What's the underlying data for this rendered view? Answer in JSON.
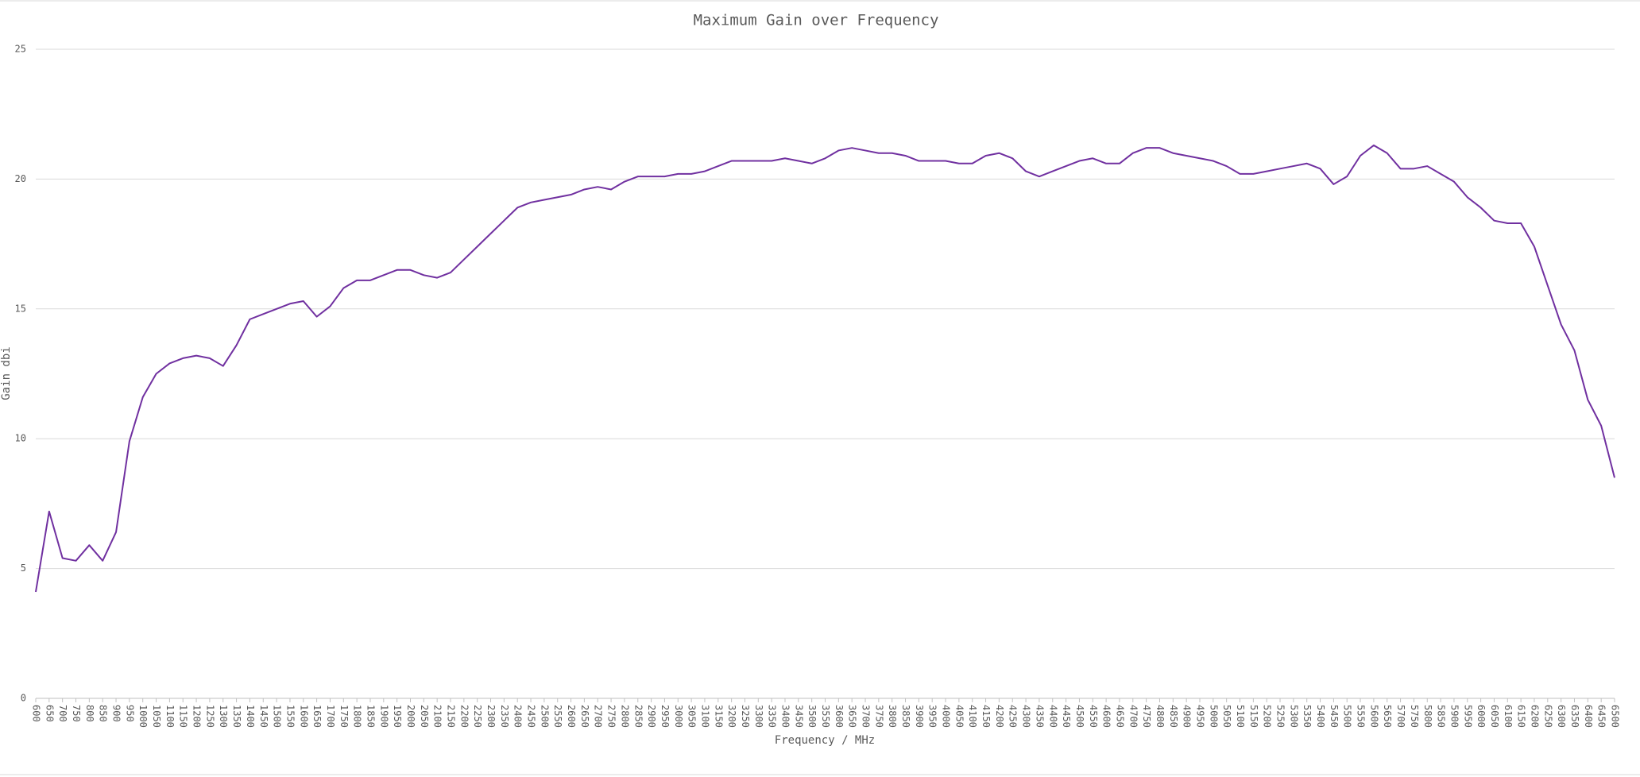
{
  "chart_data": {
    "type": "line",
    "title": "Maximum Gain over Frequency",
    "x_label": "Frequency / MHz",
    "y_label": "Gain dbi",
    "x": [
      600,
      650,
      700,
      750,
      800,
      850,
      900,
      950,
      1000,
      1050,
      1100,
      1150,
      1200,
      1250,
      1300,
      1350,
      1400,
      1450,
      1500,
      1550,
      1600,
      1650,
      1700,
      1750,
      1800,
      1850,
      1900,
      1950,
      2000,
      2050,
      2100,
      2150,
      2200,
      2250,
      2300,
      2350,
      2400,
      2450,
      2500,
      2550,
      2600,
      2650,
      2700,
      2750,
      2800,
      2850,
      2900,
      2950,
      3000,
      3050,
      3100,
      3150,
      3200,
      3250,
      3300,
      3350,
      3400,
      3450,
      3500,
      3550,
      3600,
      3650,
      3700,
      3750,
      3800,
      3850,
      3900,
      3950,
      4000,
      4050,
      4100,
      4150,
      4200,
      4250,
      4300,
      4350,
      4400,
      4450,
      4500,
      4550,
      4600,
      4650,
      4700,
      4750,
      4800,
      4850,
      4900,
      4950,
      5000,
      5050,
      5100,
      5150,
      5200,
      5250,
      5300,
      5350,
      5400,
      5450,
      5500,
      5550,
      5600,
      5650,
      5700,
      5750,
      5800,
      5850,
      5900,
      5950,
      6000,
      6050,
      6100,
      6150,
      6200,
      6250,
      6300,
      6350,
      6400,
      6450,
      6500
    ],
    "series": [
      {
        "name": "Gain",
        "color": "#7030a0",
        "values": [
          4.1,
          7.2,
          5.4,
          5.3,
          5.9,
          5.3,
          6.4,
          9.9,
          11.6,
          12.5,
          12.9,
          13.1,
          13.2,
          13.1,
          12.8,
          13.6,
          14.6,
          14.8,
          15.0,
          15.2,
          15.3,
          14.7,
          15.1,
          15.8,
          16.1,
          16.1,
          16.3,
          16.5,
          16.5,
          16.3,
          16.2,
          16.4,
          16.9,
          17.4,
          17.9,
          18.4,
          18.9,
          19.1,
          19.2,
          19.3,
          19.4,
          19.6,
          19.7,
          19.6,
          19.9,
          20.1,
          20.1,
          20.1,
          20.2,
          20.2,
          20.3,
          20.5,
          20.7,
          20.7,
          20.7,
          20.7,
          20.8,
          20.7,
          20.6,
          20.8,
          21.1,
          21.2,
          21.1,
          21.0,
          21.0,
          20.9,
          20.7,
          20.7,
          20.7,
          20.6,
          20.6,
          20.9,
          21.0,
          20.8,
          20.3,
          20.1,
          20.3,
          20.5,
          20.7,
          20.8,
          20.6,
          20.6,
          21.0,
          21.2,
          21.2,
          21.0,
          20.9,
          20.8,
          20.7,
          20.5,
          20.2,
          20.2,
          20.3,
          20.4,
          20.5,
          20.6,
          20.4,
          19.8,
          20.1,
          20.9,
          21.3,
          21.0,
          20.4,
          20.4,
          20.5,
          20.2,
          19.9,
          19.3,
          18.9,
          18.4,
          18.3,
          18.3,
          17.4,
          15.9,
          14.4,
          13.4,
          11.5,
          10.5,
          8.5
        ]
      }
    ],
    "xlim": [
      600,
      6500
    ],
    "ylim": [
      0,
      25
    ],
    "yticks": [
      0,
      5,
      10,
      15,
      20,
      25
    ],
    "grid": true
  }
}
